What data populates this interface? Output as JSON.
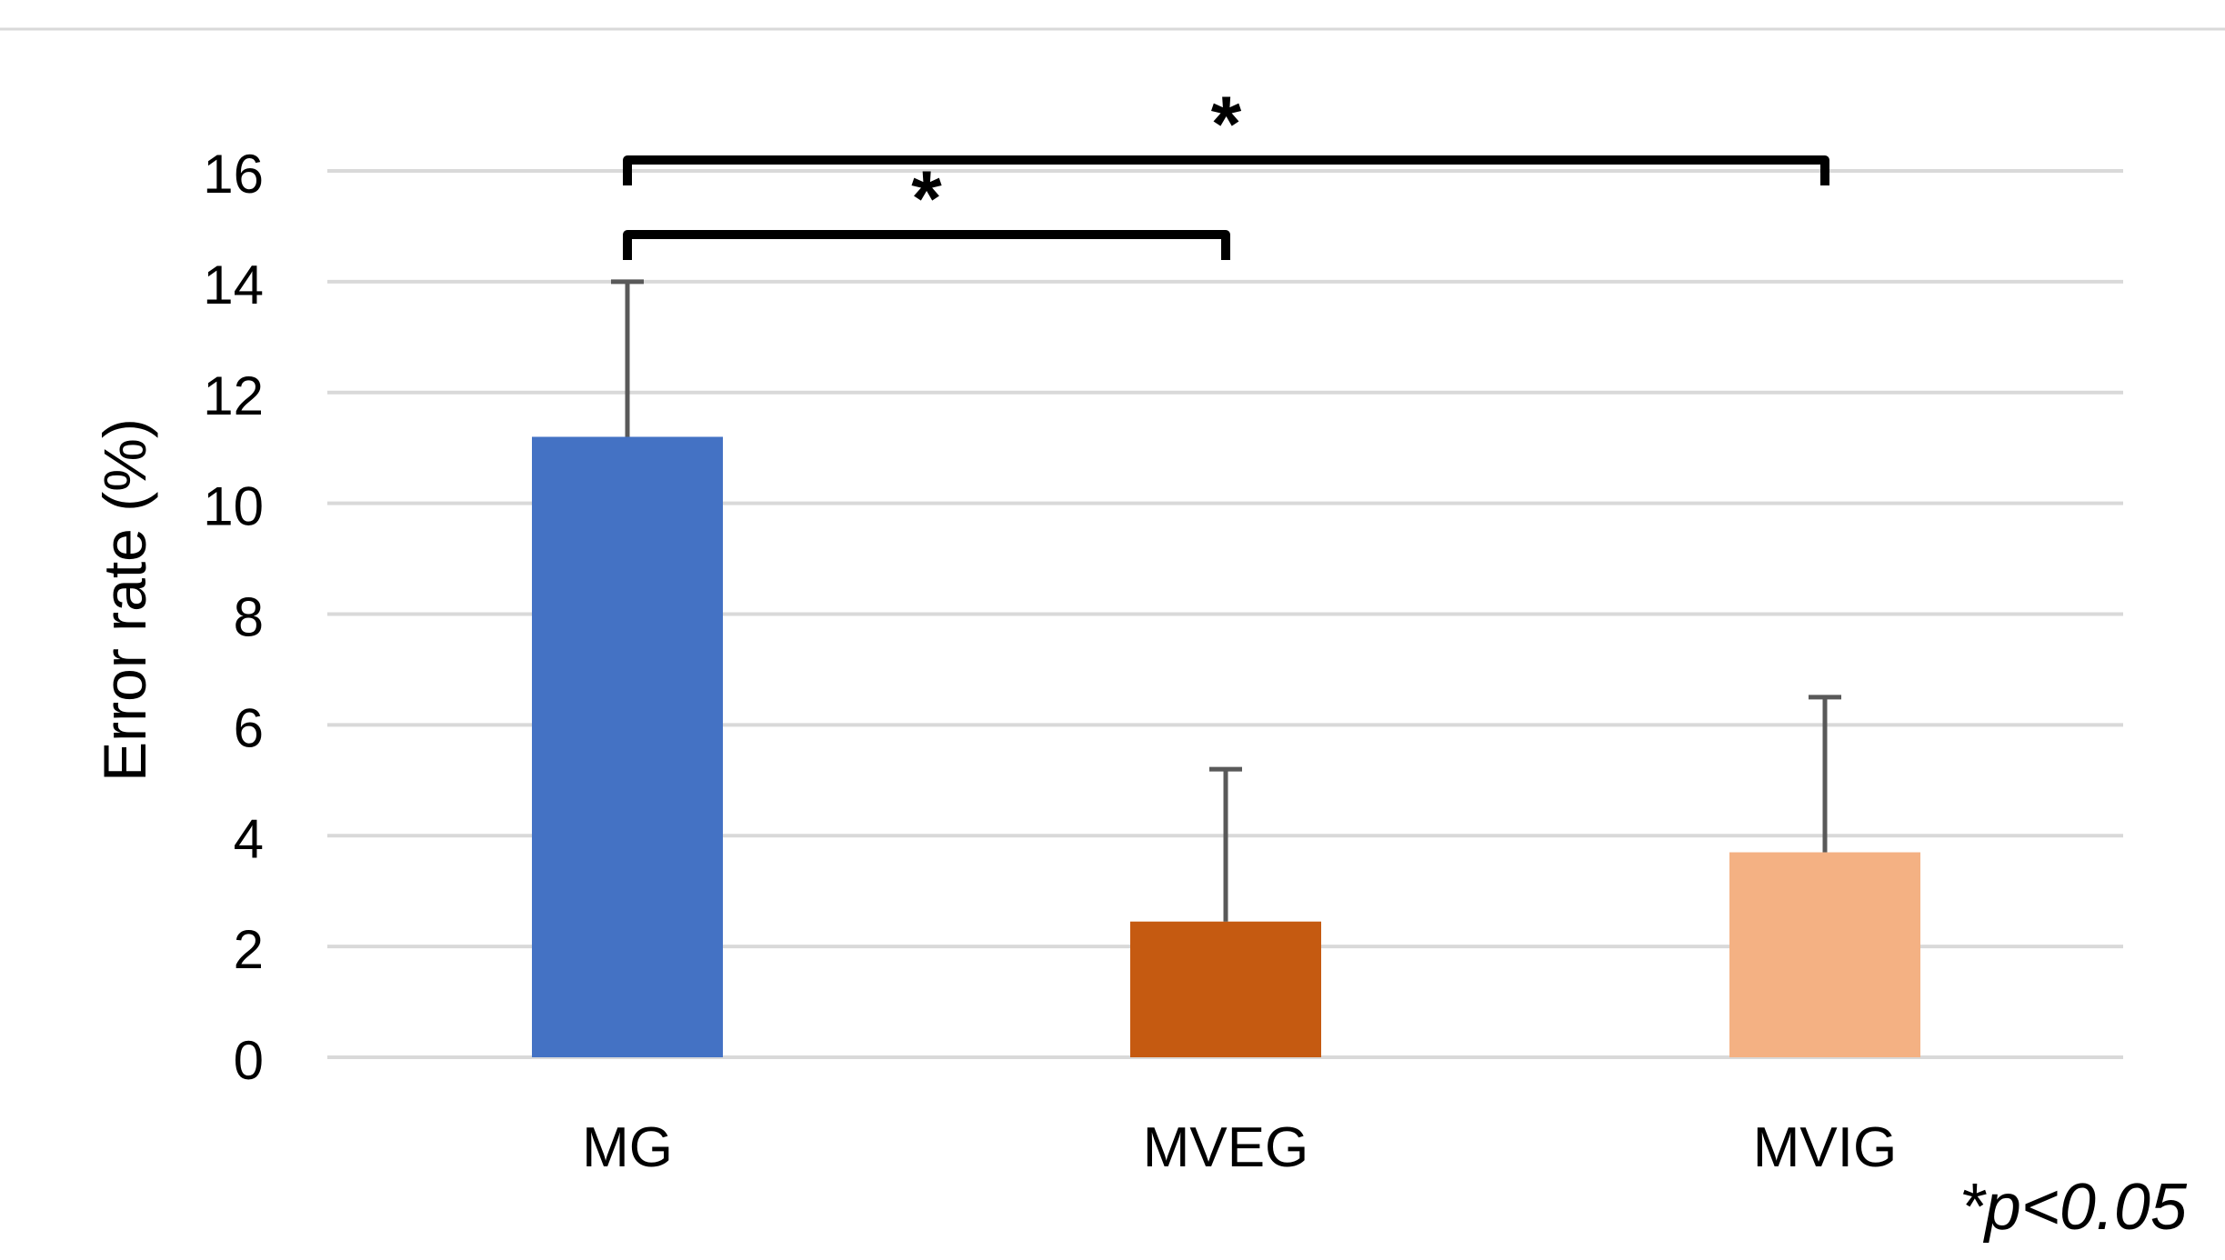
{
  "chart_data": {
    "type": "bar",
    "title": "",
    "xlabel": "",
    "ylabel": "Error rate (%)",
    "ylim": [
      0,
      16
    ],
    "yticks": [
      0,
      2,
      4,
      6,
      8,
      10,
      12,
      14,
      16
    ],
    "ytick_labels": [
      "0",
      "2",
      "4",
      "6",
      "8",
      "10",
      "12",
      "14",
      "16"
    ],
    "grid": true,
    "legend": "none",
    "categories": [
      "MG",
      "MVEG",
      "MVIG"
    ],
    "values": [
      11.2,
      2.45,
      3.7
    ],
    "error_upper": [
      2.8,
      2.75,
      2.8
    ],
    "colors": [
      "#4472C4",
      "#C55A11",
      "#F4B183"
    ],
    "significance": [
      {
        "from": "MG",
        "to": "MVEG",
        "symbol": "*"
      },
      {
        "from": "MG",
        "to": "MVIG",
        "symbol": "*"
      }
    ],
    "footnote": "*p<0.05"
  },
  "colors": {
    "grid": "#d9d9d9",
    "text": "#000000",
    "errorbar": "#595959",
    "bracket": "#000000",
    "top_rule": "#d9d9d9"
  }
}
